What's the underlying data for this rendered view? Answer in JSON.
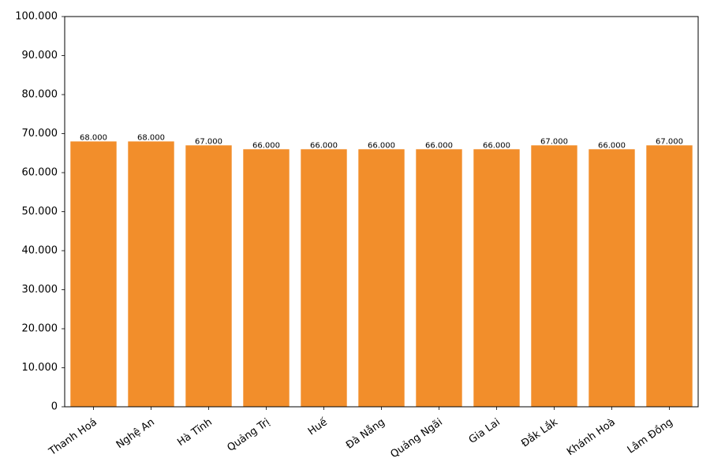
{
  "chart_data": {
    "type": "bar",
    "categories": [
      "Thanh Hoá",
      "Nghệ An",
      "Hà Tĩnh",
      "Quảng Trị",
      "Huế",
      "Đà Nẵng",
      "Quảng Ngãi",
      "Gia Lai",
      "Đắk Lắk",
      "Khánh Hoà",
      "Lâm Đồng"
    ],
    "values": [
      68000,
      68000,
      67000,
      66000,
      66000,
      66000,
      66000,
      66000,
      67000,
      66000,
      67000
    ],
    "value_labels": [
      "68.000",
      "68.000",
      "67.000",
      "66.000",
      "66.000",
      "66.000",
      "66.000",
      "66.000",
      "67.000",
      "66.000",
      "67.000"
    ],
    "color": "#f28e2b",
    "ylim": [
      0,
      100000
    ],
    "yticks": [
      0,
      {
        "value": 10000,
        "label": "10.000"
      },
      {
        "value": 20000,
        "label": "20.000"
      },
      {
        "value": 30000,
        "label": "30.000"
      },
      {
        "value": 40000,
        "label": "40.000"
      },
      {
        "value": 50000,
        "label": "50.000"
      },
      {
        "value": 60000,
        "label": "60.000"
      },
      {
        "value": 70000,
        "label": "70.000"
      },
      {
        "value": 80000,
        "label": "80.000"
      },
      {
        "value": 90000,
        "label": "90.000"
      },
      {
        "value": 100000,
        "label": "100.000"
      }
    ],
    "grid": false
  }
}
